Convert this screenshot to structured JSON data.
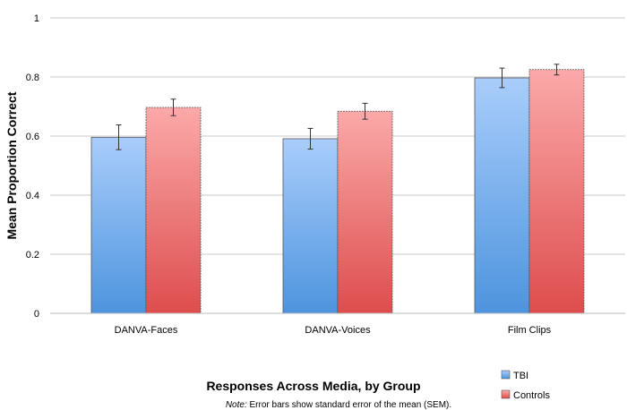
{
  "chart_data": {
    "type": "bar",
    "categories": [
      "DANVA-Faces",
      "DANVA-Voices",
      "Film Clips"
    ],
    "series": [
      {
        "name": "TBI",
        "values": [
          0.596,
          0.591,
          0.797
        ],
        "error": [
          0.042,
          0.035,
          0.033
        ],
        "color_top": "#a9cdfb",
        "color_bottom": "#4d94de"
      },
      {
        "name": "Controls",
        "values": [
          0.697,
          0.684,
          0.825
        ],
        "error": [
          0.028,
          0.027,
          0.018
        ],
        "color_top": "#fba9a9",
        "color_bottom": "#de4d4d"
      }
    ],
    "ylabel": "Mean Proportion Correct",
    "xlabel": "Responses Across Media, by Group",
    "ylim": [
      0,
      1
    ],
    "yticks": [
      0,
      0.2,
      0.4,
      0.6,
      0.8,
      1
    ],
    "ytick_labels": [
      "0",
      "0.2",
      "0.4",
      "0.6",
      "0.8",
      "1"
    ],
    "grid": true,
    "legend_position": "bottom-right"
  },
  "note": {
    "prefix": "Note:",
    "text": " Error bars show standard error of the mean (SEM)."
  }
}
